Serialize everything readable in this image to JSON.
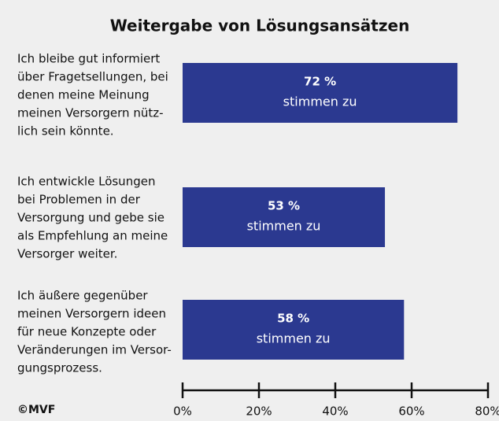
{
  "chart_data": {
    "type": "barh",
    "title": "Weitergabe von Lösungsansätzen",
    "categories": [
      [
        "Ich bleibe gut informiert",
        "über Fragetsellungen, bei",
        "denen meine Meinung",
        "meinen Versorgern nütz-",
        "lich sein könnte."
      ],
      [
        "Ich entwickle Lösungen",
        "bei Problemen in der",
        "Versorgung und gebe sie",
        "als Empfehlung an meine",
        "Versorger weiter."
      ],
      [
        "Ich äußere gegenüber",
        "meinen Versorgern ideen",
        "für neue Konzepte oder",
        "Veränderungen im Versor-",
        "gungsprozess."
      ]
    ],
    "values": [
      72,
      53,
      58
    ],
    "value_labels": [
      "72 %",
      "53 %",
      "58 %"
    ],
    "bar_text": "stimmen zu",
    "color": "#2b3990",
    "xlim": [
      0,
      80
    ],
    "xticks": [
      {
        "value": 0,
        "label": "0%"
      },
      {
        "value": 20,
        "label": "20%"
      },
      {
        "value": 40,
        "label": "40%"
      },
      {
        "value": 60,
        "label": "60%"
      },
      {
        "value": 80,
        "label": "80%"
      }
    ],
    "source": "©MVF"
  }
}
